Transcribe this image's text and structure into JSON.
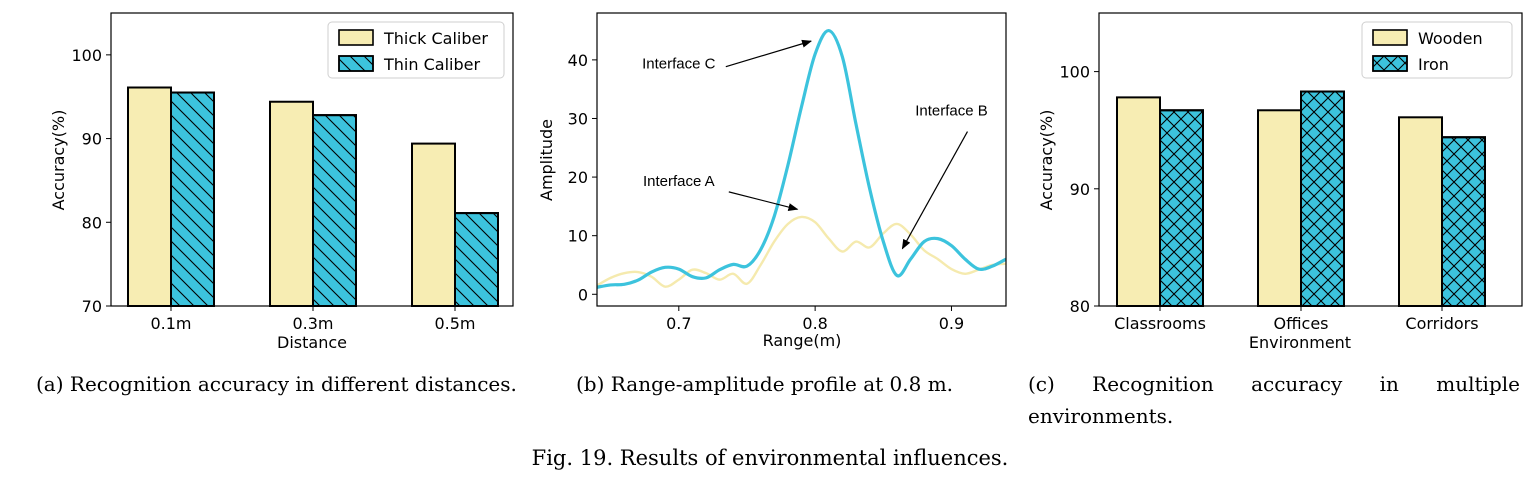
{
  "figure_caption": "Fig. 19.  Results of environmental influences.",
  "colors": {
    "light": "#F7EDB3",
    "cyan": "#3CC3DD",
    "light_line": "#F5EAAE",
    "frame": "#000000"
  },
  "captions": {
    "a": "(a)  Recognition  accuracy  in  different  distances.",
    "b": "(b)  Range-amplitude profile at 0.8 m.",
    "c": "(c)  Recognition accuracy in multiple environments."
  },
  "chart_data": [
    {
      "id": "a",
      "type": "bar",
      "xlabel": "Distance",
      "ylabel": "Accuracy(%)",
      "ylim": [
        70,
        105
      ],
      "yticks": [
        70,
        80,
        90,
        100
      ],
      "categories": [
        "0.1m",
        "0.3m",
        "0.5m"
      ],
      "series": [
        {
          "name": "Thick Caliber",
          "values": [
            96.1,
            94.4,
            89.4
          ],
          "hatch": "none"
        },
        {
          "name": "Thin Caliber",
          "values": [
            95.5,
            92.8,
            81.1
          ],
          "hatch": "diagonal"
        }
      ],
      "legend": "top-right",
      "grid": false
    },
    {
      "id": "b",
      "type": "line",
      "xlabel": "Range(m)",
      "ylabel": "Amplitude",
      "xlim": [
        0.64,
        0.94
      ],
      "ylim": [
        -2,
        48
      ],
      "xticks": [
        0.7,
        0.8,
        0.9
      ],
      "yticks": [
        0,
        10,
        20,
        30,
        40
      ],
      "series": [
        {
          "x": [
            0.64,
            0.65,
            0.66,
            0.67,
            0.68,
            0.69,
            0.7,
            0.71,
            0.72,
            0.73,
            0.74,
            0.75,
            0.76,
            0.77,
            0.78,
            0.79,
            0.8,
            0.81,
            0.82,
            0.83,
            0.84,
            0.85,
            0.86,
            0.87,
            0.88,
            0.89,
            0.9,
            0.91,
            0.92,
            0.93,
            0.94
          ],
          "values": [
            1.5,
            2.8,
            3.6,
            3.8,
            3.0,
            1.3,
            2.5,
            4.2,
            3.6,
            2.5,
            3.5,
            1.8,
            5.0,
            9.0,
            12.0,
            13.2,
            12.3,
            9.5,
            7.3,
            9.0,
            8.0,
            10.4,
            12.0,
            10.2,
            7.5,
            6.0,
            4.3,
            3.5,
            4.2,
            5.0,
            5.2
          ]
        },
        {
          "x": [
            0.64,
            0.65,
            0.66,
            0.67,
            0.68,
            0.69,
            0.7,
            0.71,
            0.72,
            0.73,
            0.74,
            0.75,
            0.76,
            0.77,
            0.78,
            0.79,
            0.8,
            0.81,
            0.82,
            0.83,
            0.84,
            0.85,
            0.86,
            0.87,
            0.88,
            0.89,
            0.9,
            0.91,
            0.92,
            0.93,
            0.94
          ],
          "values": [
            1.2,
            1.6,
            1.7,
            2.4,
            3.8,
            4.6,
            4.3,
            3.0,
            2.8,
            4.2,
            5.1,
            4.8,
            7.6,
            13.3,
            22.0,
            32.0,
            41.0,
            45.0,
            40.5,
            29.0,
            18.0,
            9.0,
            3.2,
            6.0,
            9.0,
            9.5,
            8.3,
            6.0,
            4.3,
            4.8,
            6.0
          ]
        }
      ],
      "annotations": [
        {
          "text": "Interface C",
          "x": 0.7,
          "y": 38.5,
          "arrow_to": [
            0.797,
            43.2
          ]
        },
        {
          "text": "Interface B",
          "x": 0.9,
          "y": 30.5,
          "arrow_to": [
            0.864,
            7.8
          ]
        },
        {
          "text": "Interface A",
          "x": 0.7,
          "y": 18.5,
          "arrow_to": [
            0.787,
            14.5
          ]
        }
      ],
      "grid": false
    },
    {
      "id": "c",
      "type": "bar",
      "xlabel": "Environment",
      "ylabel": "Accuracy(%)",
      "ylim": [
        80,
        105
      ],
      "yticks": [
        80,
        90,
        100
      ],
      "categories": [
        "Classrooms",
        "Offices",
        "Corridors"
      ],
      "series": [
        {
          "name": "Wooden",
          "values": [
            97.8,
            96.7,
            96.1
          ],
          "hatch": "none"
        },
        {
          "name": "Iron",
          "values": [
            96.7,
            98.3,
            94.4
          ],
          "hatch": "cross"
        }
      ],
      "legend": "top-right",
      "grid": false
    }
  ]
}
